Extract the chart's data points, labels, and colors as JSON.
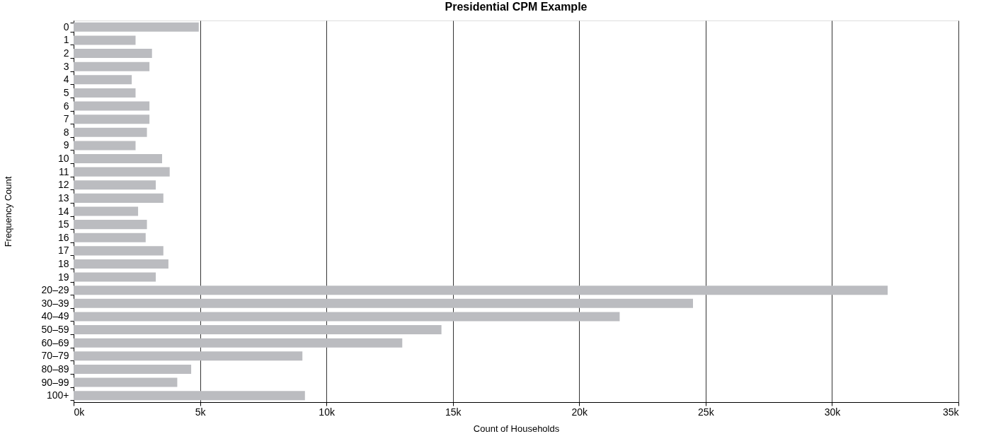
{
  "chart_data": {
    "type": "bar",
    "orientation": "horizontal",
    "title": "Presidential CPM Example",
    "xlabel": "Count of Households",
    "ylabel": "Frequency Count",
    "categories": [
      "0",
      "1",
      "2",
      "3",
      "4",
      "5",
      "6",
      "7",
      "8",
      "9",
      "10",
      "11",
      "12",
      "13",
      "14",
      "15",
      "16",
      "17",
      "18",
      "19",
      "20–29",
      "30–39",
      "40–49",
      "50–59",
      "60–69",
      "70–79",
      "80–89",
      "90–99",
      "100+"
    ],
    "values": [
      4950,
      2450,
      3100,
      3000,
      2300,
      2450,
      3000,
      3000,
      2900,
      2450,
      3500,
      3800,
      3250,
      3550,
      2550,
      2900,
      2850,
      3550,
      3750,
      3250,
      32200,
      24500,
      21600,
      14550,
      13000,
      9050,
      4650,
      4100,
      9150
    ],
    "color": "#bbbcc0",
    "xlim": [
      0,
      35000
    ],
    "xticks": [
      {
        "value": 0,
        "label": "0k"
      },
      {
        "value": 5000,
        "label": "5k"
      },
      {
        "value": 10000,
        "label": "10k"
      },
      {
        "value": 15000,
        "label": "15k"
      },
      {
        "value": 20000,
        "label": "20k"
      },
      {
        "value": 25000,
        "label": "25k"
      },
      {
        "value": 30000,
        "label": "30k"
      },
      {
        "value": 35000,
        "label": "35k"
      }
    ],
    "grid": "x"
  }
}
